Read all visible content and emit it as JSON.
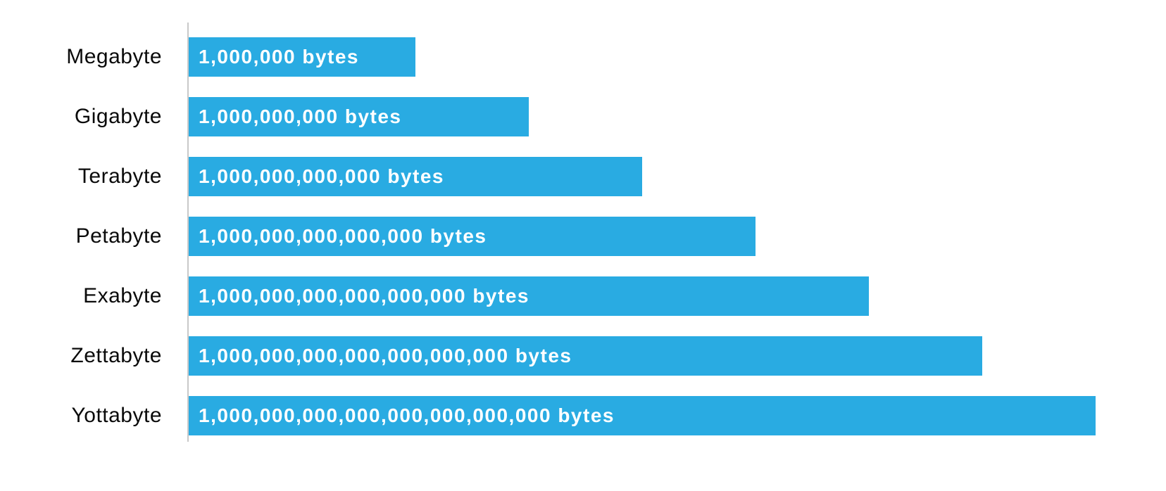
{
  "chart_data": {
    "type": "bar",
    "orientation": "horizontal",
    "title": "",
    "xlabel": "",
    "ylabel": "",
    "grid": false,
    "legend": false,
    "background_color": "#ffffff",
    "bar_color": "#29abe2",
    "bar_text_color": "#ffffff",
    "label_color": "#0a0a0a",
    "axis_line_color": "#c9c9c9",
    "categories": [
      "Megabyte",
      "Gigabyte",
      "Terabyte",
      "Petabyte",
      "Exabyte",
      "Zettabyte",
      "Yottabyte"
    ],
    "value_labels": [
      "1,000,000 bytes",
      "1,000,000,000 bytes",
      "1,000,000,000,000 bytes",
      "1,000,000,000,000,000 bytes",
      "1,000,000,000,000,000,000 bytes",
      "1,000,000,000,000,000,000,000 bytes",
      "1,000,000,000,000,000,000,000,000 bytes"
    ],
    "bytes_power_of_10": [
      6,
      9,
      12,
      15,
      18,
      21,
      24
    ],
    "bar_length_pct": [
      25,
      37.5,
      50,
      62.5,
      75,
      87.5,
      100
    ]
  }
}
